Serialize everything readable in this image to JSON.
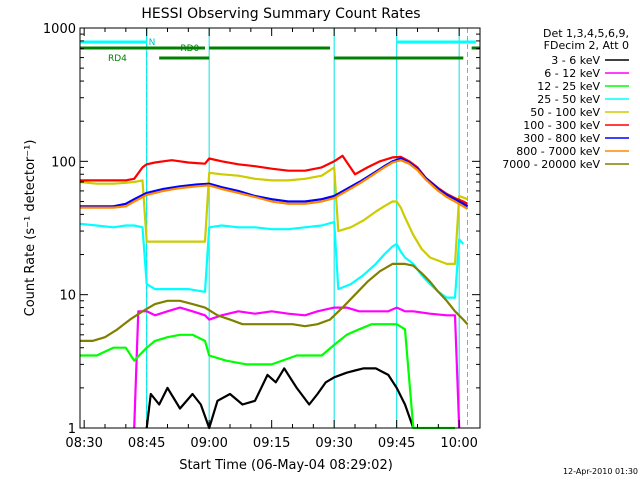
{
  "chart_data": {
    "type": "line",
    "title": "HESSI Observing Summary Count Rates",
    "xlabel": "Start Time (06-May-04 08:29:02)",
    "ylabel": "Count Rate (s⁻¹ detector⁻¹)",
    "x_unit": "minutes after 08:29:02",
    "xlim": [
      0,
      96
    ],
    "ylim": [
      1,
      1000
    ],
    "y_scale": "log",
    "x_ticks": [
      {
        "value": 1,
        "label": "08:30"
      },
      {
        "value": 16,
        "label": "08:45"
      },
      {
        "value": 31,
        "label": "09:00"
      },
      {
        "value": 46,
        "label": "09:15"
      },
      {
        "value": 61,
        "label": "09:30"
      },
      {
        "value": 76,
        "label": "09:45"
      },
      {
        "value": 91,
        "label": "10:00"
      }
    ],
    "y_ticks": [
      {
        "value": 1,
        "label": "1"
      },
      {
        "value": 10,
        "label": "10"
      },
      {
        "value": 100,
        "label": "100"
      },
      {
        "value": 1000,
        "label": "1000"
      }
    ],
    "legend_header": [
      "Det 1,3,4,5,6,9,",
      "FDecim 2, Att 0"
    ],
    "legend_position": "right",
    "series": [
      {
        "name": "3 - 6 keV",
        "color": "#000000",
        "points": [
          [
            16,
            1
          ],
          [
            17,
            1.8
          ],
          [
            19,
            1.5
          ],
          [
            21,
            2.0
          ],
          [
            24,
            1.4
          ],
          [
            27,
            1.8
          ],
          [
            29,
            1.5
          ],
          [
            31,
            1
          ],
          [
            33,
            1.6
          ],
          [
            36,
            1.8
          ],
          [
            39,
            1.5
          ],
          [
            42,
            1.6
          ],
          [
            45,
            2.5
          ],
          [
            47,
            2.2
          ],
          [
            49,
            2.8
          ],
          [
            52,
            2.0
          ],
          [
            55,
            1.5
          ],
          [
            57,
            1.8
          ],
          [
            59,
            2.2
          ],
          [
            61,
            2.4
          ],
          [
            64,
            2.6
          ],
          [
            66,
            2.7
          ],
          [
            68,
            2.8
          ],
          [
            71,
            2.8
          ],
          [
            74,
            2.5
          ],
          [
            76,
            2.0
          ],
          [
            78,
            1.5
          ],
          [
            80,
            1
          ]
        ]
      },
      {
        "name": "6 - 12 keV",
        "color": "#ff00ff",
        "points": [
          [
            13,
            1
          ],
          [
            14,
            7.5
          ],
          [
            16,
            7.5
          ],
          [
            18,
            7.0
          ],
          [
            21,
            7.5
          ],
          [
            24,
            8.0
          ],
          [
            27,
            7.5
          ],
          [
            30,
            7.0
          ],
          [
            31,
            6.5
          ],
          [
            34,
            7.0
          ],
          [
            38,
            7.5
          ],
          [
            42,
            7.2
          ],
          [
            46,
            7.5
          ],
          [
            50,
            7.2
          ],
          [
            54,
            7.0
          ],
          [
            57,
            7.5
          ],
          [
            61,
            8.0
          ],
          [
            64,
            8.0
          ],
          [
            67,
            7.5
          ],
          [
            71,
            7.5
          ],
          [
            74,
            7.5
          ],
          [
            76,
            8.0
          ],
          [
            78,
            7.5
          ],
          [
            80,
            7.5
          ],
          [
            84,
            7.2
          ],
          [
            88,
            7.0
          ],
          [
            90,
            7.0
          ],
          [
            91,
            1
          ]
        ]
      },
      {
        "name": "12 - 25 keV",
        "color": "#00ff00",
        "points": [
          [
            0,
            3.5
          ],
          [
            4,
            3.5
          ],
          [
            8,
            4.0
          ],
          [
            11,
            4.0
          ],
          [
            13,
            3.2
          ],
          [
            16,
            4.0
          ],
          [
            18,
            4.5
          ],
          [
            21,
            4.8
          ],
          [
            24,
            5.0
          ],
          [
            27,
            5.0
          ],
          [
            30,
            4.5
          ],
          [
            31,
            3.5
          ],
          [
            35,
            3.2
          ],
          [
            40,
            3.0
          ],
          [
            46,
            3.0
          ],
          [
            52,
            3.5
          ],
          [
            58,
            3.5
          ],
          [
            61,
            4.2
          ],
          [
            64,
            5.0
          ],
          [
            67,
            5.5
          ],
          [
            70,
            6.0
          ],
          [
            73,
            6.0
          ],
          [
            76,
            6.0
          ],
          [
            78,
            5.5
          ],
          [
            80,
            1
          ],
          [
            86,
            1
          ],
          [
            90,
            1
          ]
        ]
      },
      {
        "name": "25 - 50 keV",
        "color": "#00ffff",
        "points": [
          [
            0,
            34
          ],
          [
            4,
            33
          ],
          [
            8,
            32
          ],
          [
            11,
            33
          ],
          [
            13,
            33
          ],
          [
            15,
            32
          ],
          [
            16,
            12
          ],
          [
            18,
            11
          ],
          [
            22,
            11
          ],
          [
            26,
            11
          ],
          [
            30,
            10.5
          ],
          [
            31,
            32
          ],
          [
            34,
            33
          ],
          [
            38,
            32
          ],
          [
            42,
            32
          ],
          [
            46,
            31
          ],
          [
            50,
            31
          ],
          [
            54,
            32
          ],
          [
            58,
            33
          ],
          [
            61,
            35
          ],
          [
            62,
            11
          ],
          [
            65,
            12
          ],
          [
            68,
            14
          ],
          [
            71,
            17
          ],
          [
            73,
            20
          ],
          [
            75,
            23
          ],
          [
            76,
            24
          ],
          [
            77,
            21
          ],
          [
            78,
            19
          ],
          [
            80,
            17
          ],
          [
            82,
            14
          ],
          [
            84,
            12
          ],
          [
            86,
            10.5
          ],
          [
            88,
            9.5
          ],
          [
            90,
            9.5
          ],
          [
            91,
            26
          ],
          [
            92,
            24
          ]
        ]
      },
      {
        "name": "50 - 100 keV",
        "color": "#cccc00",
        "points": [
          [
            0,
            70
          ],
          [
            4,
            68
          ],
          [
            8,
            68
          ],
          [
            11,
            69
          ],
          [
            13,
            70
          ],
          [
            15,
            72
          ],
          [
            16,
            25
          ],
          [
            20,
            25
          ],
          [
            24,
            25
          ],
          [
            28,
            25
          ],
          [
            30,
            25
          ],
          [
            31,
            82
          ],
          [
            34,
            80
          ],
          [
            38,
            78
          ],
          [
            42,
            74
          ],
          [
            46,
            72
          ],
          [
            50,
            72
          ],
          [
            54,
            74
          ],
          [
            58,
            78
          ],
          [
            61,
            90
          ],
          [
            62,
            30
          ],
          [
            65,
            32
          ],
          [
            68,
            36
          ],
          [
            71,
            42
          ],
          [
            73,
            46
          ],
          [
            75,
            50
          ],
          [
            76,
            50
          ],
          [
            77,
            45
          ],
          [
            78,
            38
          ],
          [
            80,
            28
          ],
          [
            82,
            22
          ],
          [
            84,
            19
          ],
          [
            86,
            18
          ],
          [
            88,
            17
          ],
          [
            90,
            17
          ],
          [
            91,
            55
          ],
          [
            93,
            52
          ]
        ]
      },
      {
        "name": "100 - 300 keV",
        "color": "#ff0000",
        "points": [
          [
            0,
            72
          ],
          [
            4,
            72
          ],
          [
            8,
            72
          ],
          [
            11,
            72
          ],
          [
            13,
            74
          ],
          [
            15,
            90
          ],
          [
            16,
            95
          ],
          [
            18,
            98
          ],
          [
            20,
            100
          ],
          [
            22,
            102
          ],
          [
            24,
            100
          ],
          [
            26,
            98
          ],
          [
            28,
            97
          ],
          [
            30,
            96
          ],
          [
            31,
            105
          ],
          [
            34,
            100
          ],
          [
            38,
            95
          ],
          [
            42,
            92
          ],
          [
            46,
            88
          ],
          [
            50,
            85
          ],
          [
            54,
            85
          ],
          [
            58,
            90
          ],
          [
            61,
            100
          ],
          [
            63,
            110
          ],
          [
            66,
            80
          ],
          [
            69,
            90
          ],
          [
            72,
            100
          ],
          [
            75,
            107
          ],
          [
            77,
            108
          ],
          [
            79,
            100
          ],
          [
            81,
            90
          ],
          [
            83,
            75
          ],
          [
            86,
            63
          ],
          [
            88,
            57
          ],
          [
            90,
            53
          ],
          [
            92,
            50
          ],
          [
            93,
            48
          ]
        ]
      },
      {
        "name": "300 - 800 keV",
        "color": "#0000ff",
        "points": [
          [
            0,
            46
          ],
          [
            4,
            46
          ],
          [
            8,
            46
          ],
          [
            11,
            48
          ],
          [
            13,
            52
          ],
          [
            16,
            58
          ],
          [
            20,
            62
          ],
          [
            24,
            65
          ],
          [
            28,
            67
          ],
          [
            31,
            68
          ],
          [
            34,
            64
          ],
          [
            38,
            60
          ],
          [
            42,
            55
          ],
          [
            46,
            52
          ],
          [
            50,
            50
          ],
          [
            54,
            50
          ],
          [
            58,
            52
          ],
          [
            61,
            55
          ],
          [
            64,
            62
          ],
          [
            67,
            70
          ],
          [
            70,
            80
          ],
          [
            73,
            92
          ],
          [
            75,
            100
          ],
          [
            77,
            105
          ],
          [
            79,
            98
          ],
          [
            81,
            88
          ],
          [
            83,
            75
          ],
          [
            86,
            62
          ],
          [
            88,
            56
          ],
          [
            90,
            52
          ],
          [
            92,
            48
          ],
          [
            93,
            46
          ]
        ]
      },
      {
        "name": "800 - 7000 keV",
        "color": "#ff8800",
        "points": [
          [
            0,
            45
          ],
          [
            4,
            45
          ],
          [
            8,
            45
          ],
          [
            11,
            46
          ],
          [
            13,
            50
          ],
          [
            16,
            56
          ],
          [
            20,
            60
          ],
          [
            24,
            63
          ],
          [
            28,
            65
          ],
          [
            31,
            66
          ],
          [
            34,
            62
          ],
          [
            38,
            58
          ],
          [
            42,
            54
          ],
          [
            46,
            50
          ],
          [
            50,
            48
          ],
          [
            54,
            48
          ],
          [
            58,
            50
          ],
          [
            61,
            53
          ],
          [
            64,
            60
          ],
          [
            67,
            68
          ],
          [
            70,
            78
          ],
          [
            73,
            90
          ],
          [
            75,
            98
          ],
          [
            77,
            102
          ],
          [
            79,
            96
          ],
          [
            81,
            86
          ],
          [
            83,
            73
          ],
          [
            86,
            60
          ],
          [
            88,
            54
          ],
          [
            90,
            50
          ],
          [
            92,
            46
          ],
          [
            93,
            44
          ]
        ]
      },
      {
        "name": "7000 - 20000 keV",
        "color": "#808000",
        "points": [
          [
            0,
            4.5
          ],
          [
            3,
            4.5
          ],
          [
            6,
            4.8
          ],
          [
            9,
            5.5
          ],
          [
            12,
            6.5
          ],
          [
            15,
            7.5
          ],
          [
            18,
            8.5
          ],
          [
            21,
            9.0
          ],
          [
            24,
            9.0
          ],
          [
            27,
            8.5
          ],
          [
            30,
            8.0
          ],
          [
            33,
            7.0
          ],
          [
            36,
            6.5
          ],
          [
            39,
            6.0
          ],
          [
            42,
            6.0
          ],
          [
            45,
            6.0
          ],
          [
            48,
            6.0
          ],
          [
            51,
            6.0
          ],
          [
            54,
            5.8
          ],
          [
            57,
            6.0
          ],
          [
            60,
            6.5
          ],
          [
            63,
            8.0
          ],
          [
            66,
            10.0
          ],
          [
            69,
            12.5
          ],
          [
            72,
            15.0
          ],
          [
            75,
            17.0
          ],
          [
            78,
            17.0
          ],
          [
            80,
            16.5
          ],
          [
            82,
            14.5
          ],
          [
            84,
            12.5
          ],
          [
            86,
            10.5
          ],
          [
            88,
            9.0
          ],
          [
            90,
            7.5
          ],
          [
            92,
            6.5
          ],
          [
            93,
            6.0
          ]
        ]
      }
    ],
    "annotations": {
      "att_labels": [
        {
          "text": "N",
          "x": 16
        }
      ],
      "rd_labels": [
        {
          "text": "RD0",
          "x": 26
        },
        {
          "text": "RD4",
          "x": 12
        }
      ],
      "cyan_segments": [
        [
          0,
          16
        ],
        [
          76,
          95
        ]
      ],
      "green_upper_segments": [
        [
          0,
          30
        ],
        [
          31,
          60
        ],
        [
          94,
          96
        ]
      ],
      "green_lower_segments": [
        [
          19,
          31
        ],
        [
          61,
          92
        ]
      ],
      "vlines_solid": [
        16,
        31,
        61,
        76,
        91
      ],
      "vlines_dashed": [
        16,
        93
      ]
    }
  },
  "footer": {
    "timestamp": "12-Apr-2010 01:30"
  }
}
